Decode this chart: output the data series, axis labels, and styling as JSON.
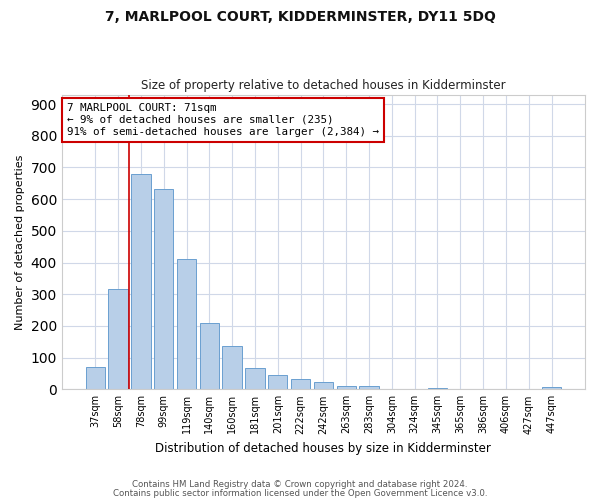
{
  "title": "7, MARLPOOL COURT, KIDDERMINSTER, DY11 5DQ",
  "subtitle": "Size of property relative to detached houses in Kidderminster",
  "xlabel": "Distribution of detached houses by size in Kidderminster",
  "ylabel": "Number of detached properties",
  "categories": [
    "37sqm",
    "58sqm",
    "78sqm",
    "99sqm",
    "119sqm",
    "140sqm",
    "160sqm",
    "181sqm",
    "201sqm",
    "222sqm",
    "242sqm",
    "263sqm",
    "283sqm",
    "304sqm",
    "324sqm",
    "345sqm",
    "365sqm",
    "386sqm",
    "406sqm",
    "427sqm",
    "447sqm"
  ],
  "values": [
    70,
    318,
    680,
    632,
    410,
    210,
    138,
    68,
    46,
    32,
    22,
    12,
    10,
    0,
    0,
    5,
    0,
    0,
    0,
    0,
    7
  ],
  "bar_color": "#b8cfe8",
  "bar_edge_color": "#6a9fd0",
  "vline_x_index": 1.5,
  "vline_color": "#cc0000",
  "annotation_line1": "7 MARLPOOL COURT: 71sqm",
  "annotation_line2": "← 9% of detached houses are smaller (235)",
  "annotation_line3": "91% of semi-detached houses are larger (2,384) →",
  "annotation_box_color": "#ffffff",
  "annotation_box_edge_color": "#cc0000",
  "ylim": [
    0,
    930
  ],
  "yticks": [
    0,
    100,
    200,
    300,
    400,
    500,
    600,
    700,
    800,
    900
  ],
  "footer1": "Contains HM Land Registry data © Crown copyright and database right 2024.",
  "footer2": "Contains public sector information licensed under the Open Government Licence v3.0.",
  "bg_color": "#ffffff",
  "plot_bg_color": "#ffffff",
  "grid_color": "#d0d8e8"
}
